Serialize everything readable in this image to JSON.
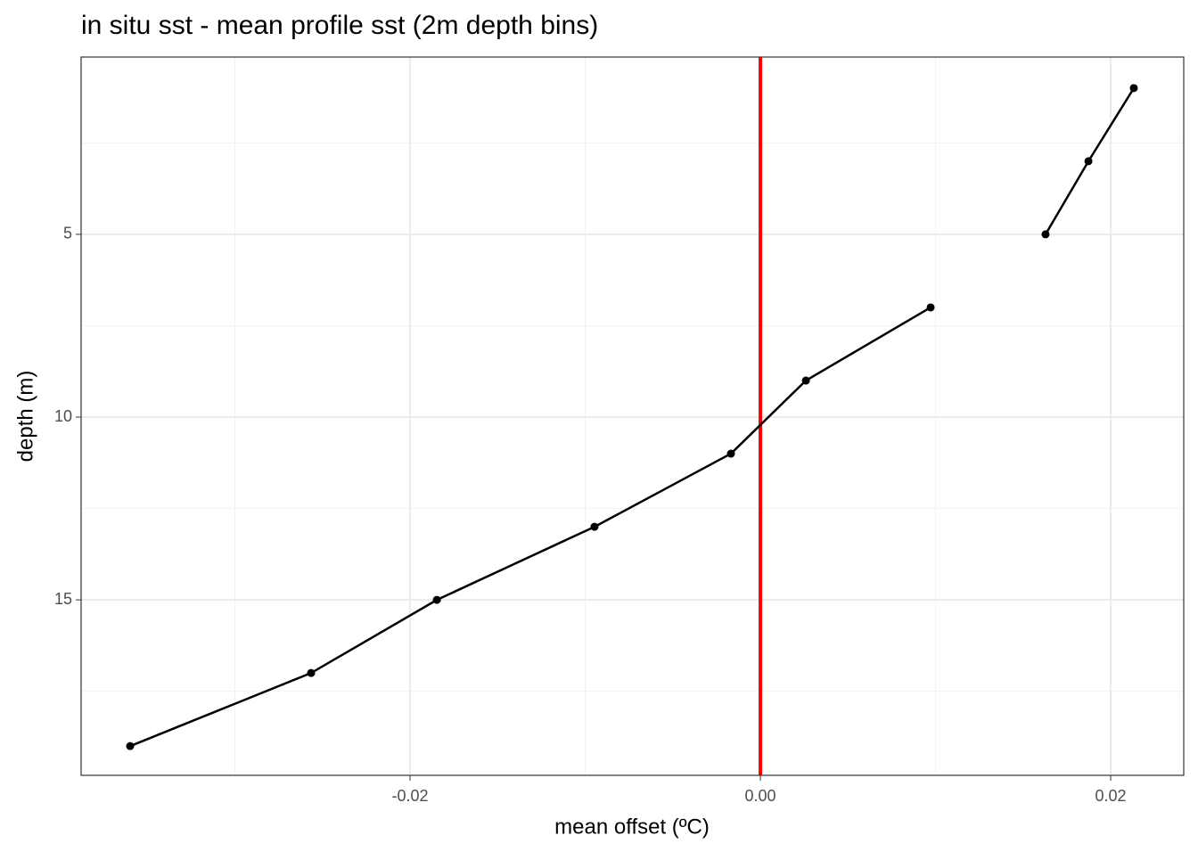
{
  "chart_data": {
    "type": "line",
    "title": "in situ sst - mean profile sst (2m depth bins)",
    "xlabel": "mean offset (ºC)",
    "ylabel": "depth (m)",
    "x": [
      0.02132,
      0.01873,
      0.01628,
      null,
      0.00972,
      0.0026,
      -0.00168,
      -0.00947,
      -0.01847,
      -0.02565,
      -0.03598
    ],
    "series": [
      {
        "color": "#000000",
        "values": [
          1,
          3,
          5,
          null,
          7,
          9,
          11,
          13,
          15,
          17,
          19
        ]
      }
    ],
    "xlim": [
      -0.03878,
      0.02417
    ],
    "xticks": [
      -0.02,
      {
        "value": 0,
        "label": "0.00"
      },
      0.02
    ],
    "xminor": [
      -0.03,
      -0.01,
      0.01
    ],
    "ylim": [
      0.15,
      19.8
    ],
    "yticks": [
      5,
      10,
      15
    ],
    "yminor": [
      2.5,
      7.5,
      12.5,
      17.5
    ],
    "y_reversed": true,
    "grid": true,
    "vline": {
      "x": 0,
      "color": "#ff0000"
    }
  }
}
